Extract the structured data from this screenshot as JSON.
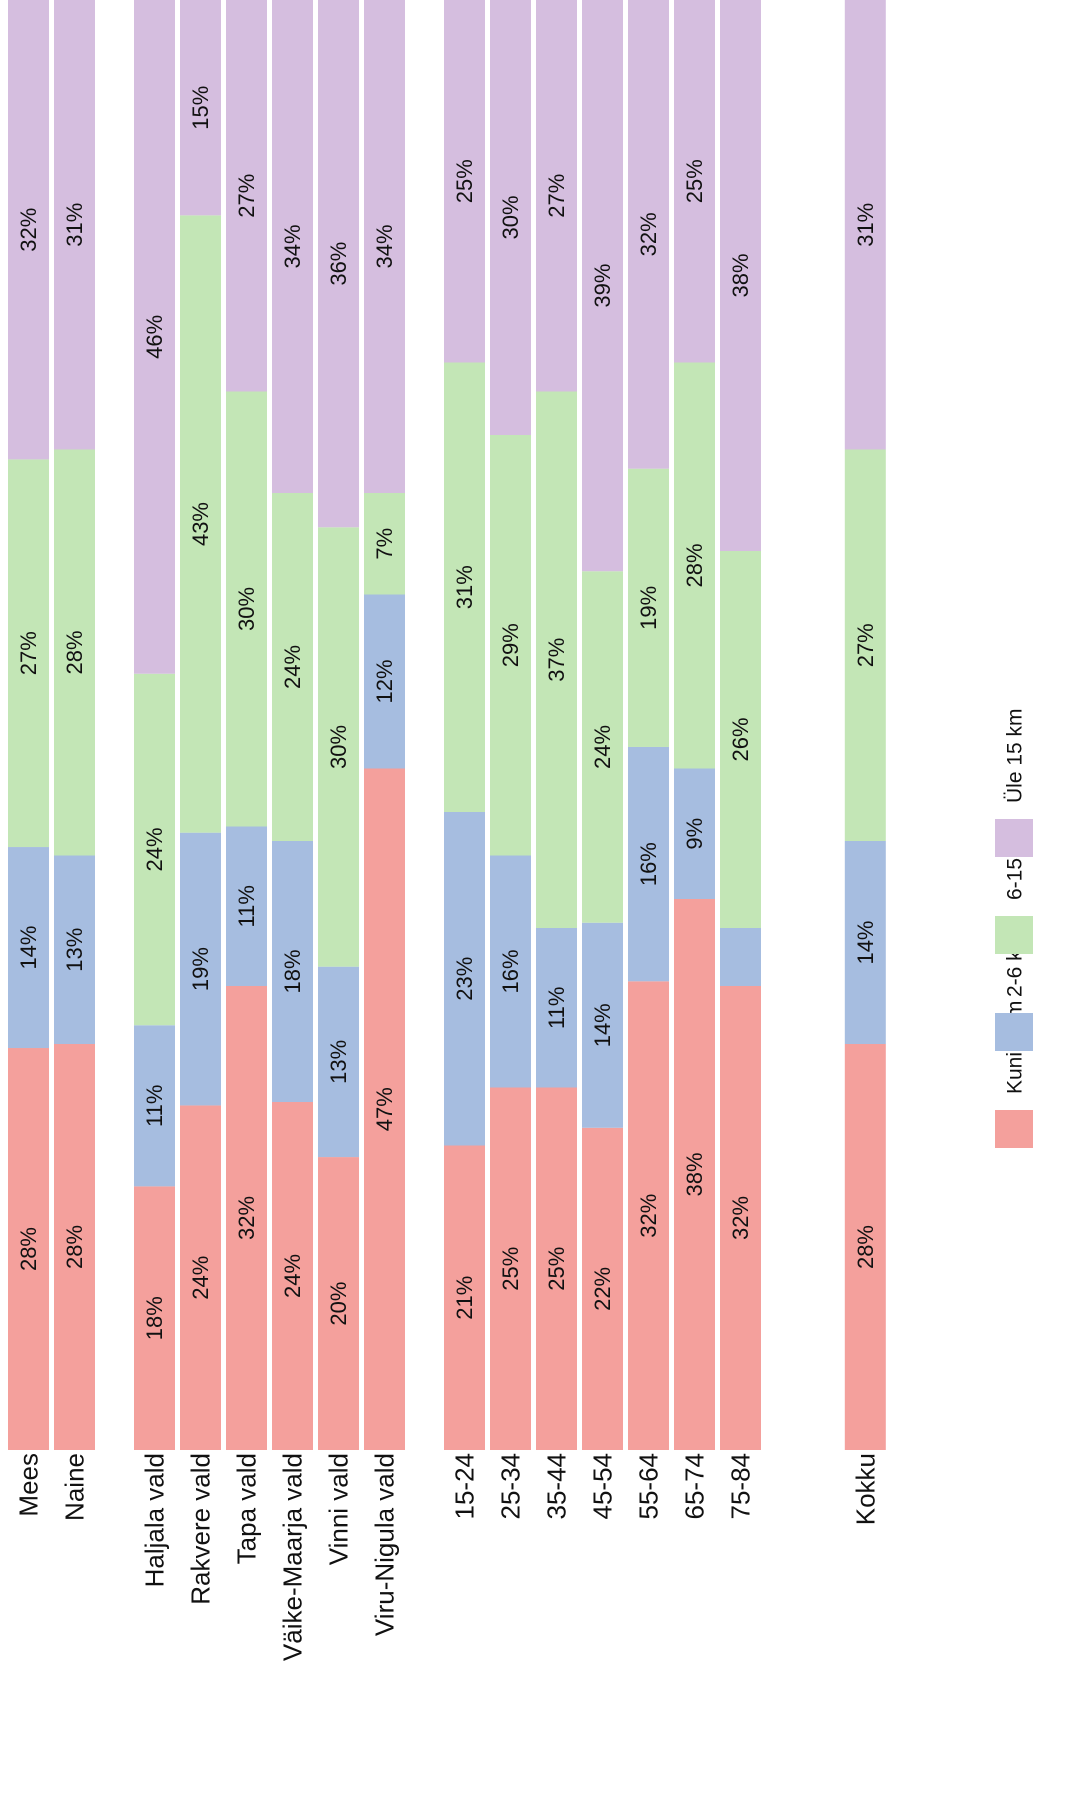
{
  "chart_data": {
    "type": "bar",
    "orientation": "stacked-100-percent",
    "categories": [
      {
        "label": "Mees",
        "group": 0
      },
      {
        "label": "Naine",
        "group": 0
      },
      {
        "label": "Haljala vald",
        "group": 1
      },
      {
        "label": "Rakvere vald",
        "group": 1
      },
      {
        "label": "Tapa vald",
        "group": 1
      },
      {
        "label": "Väike-Maarja vald",
        "group": 1
      },
      {
        "label": "Vinni vald",
        "group": 1
      },
      {
        "label": "Viru-Nigula vald",
        "group": 1
      },
      {
        "label": "15-24",
        "group": 2
      },
      {
        "label": "25-34",
        "group": 2
      },
      {
        "label": "35-44",
        "group": 2
      },
      {
        "label": "45-54",
        "group": 2
      },
      {
        "label": "55-64",
        "group": 2
      },
      {
        "label": "65-74",
        "group": 2
      },
      {
        "label": "75-84",
        "group": 2
      },
      {
        "label": "Kokku",
        "group": 3
      }
    ],
    "series": [
      {
        "name": "Kuni 2 km",
        "color": "#f4a09c",
        "values": [
          28,
          28,
          18,
          24,
          32,
          24,
          20,
          47,
          21,
          25,
          25,
          22,
          32,
          38,
          32,
          28
        ],
        "labels": [
          "28%",
          "28%",
          "18%",
          "24%",
          "32%",
          "24%",
          "20%",
          "47%",
          "21%",
          "25%",
          "25%",
          "22%",
          "32%",
          "38%",
          "32%",
          "28%"
        ]
      },
      {
        "name": "2-6 km",
        "color": "#a6bde0",
        "values": [
          14,
          13,
          11,
          19,
          11,
          18,
          13,
          12,
          23,
          16,
          11,
          14,
          16,
          9,
          4,
          14
        ],
        "labels": [
          "14%",
          "13%",
          "11%",
          "19%",
          "11%",
          "18%",
          "13%",
          "12%",
          "23%",
          "16%",
          "11%",
          "14%",
          "16%",
          "9%",
          "",
          "14%"
        ]
      },
      {
        "name": "6-15 km",
        "color": "#c3e6b6",
        "values": [
          27,
          28,
          24,
          43,
          30,
          24,
          30,
          7,
          31,
          29,
          37,
          24,
          19,
          28,
          26,
          27
        ],
        "labels": [
          "27%",
          "28%",
          "24%",
          "43%",
          "30%",
          "24%",
          "30%",
          "7%",
          "31%",
          "29%",
          "37%",
          "24%",
          "19%",
          "28%",
          "26%",
          "27%"
        ]
      },
      {
        "name": "Üle 15 km",
        "color": "#d5bedf",
        "values": [
          32,
          31,
          46,
          15,
          27,
          34,
          36,
          34,
          25,
          30,
          27,
          39,
          32,
          25,
          38,
          31
        ],
        "labels": [
          "32%",
          "31%",
          "46%",
          "15%",
          "27%",
          "34%",
          "36%",
          "34%",
          "25%",
          "30%",
          "27%",
          "39%",
          "32%",
          "25%",
          "38%",
          "31%"
        ]
      }
    ],
    "ylim": [
      0,
      100
    ],
    "legend": "bottom"
  }
}
